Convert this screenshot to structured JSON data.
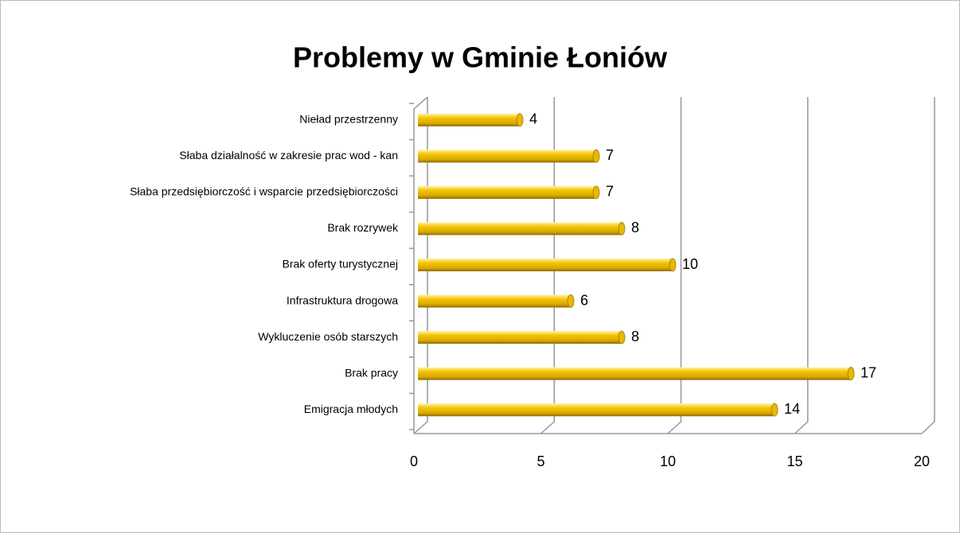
{
  "chart_data": {
    "type": "bar",
    "orientation": "horizontal",
    "title": "Problemy w Gminie Łoniów",
    "categories": [
      "Emigracja młodych",
      "Brak pracy",
      "Wykluczenie osób starszych",
      "Infrastruktura drogowa",
      "Brak oferty turystycznej",
      "Brak rozrywek",
      "Słaba przedsiębiorczość i wsparcie przedsiębiorczości",
      "Słaba działalność w zakresie prac wod - kan",
      "Nieład przestrzenny"
    ],
    "values": [
      14,
      17,
      8,
      6,
      10,
      8,
      7,
      7,
      4
    ],
    "color": "#e8b800",
    "xlim": [
      0,
      20
    ],
    "xticks": [
      0,
      5,
      10,
      15,
      20
    ],
    "grid": true
  }
}
